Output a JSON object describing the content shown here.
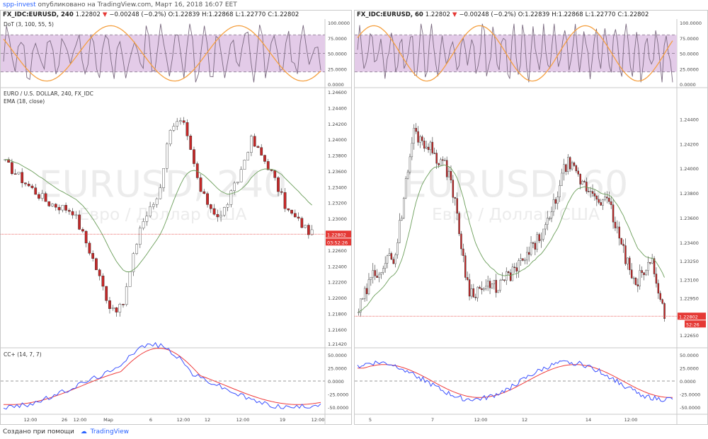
{
  "header": {
    "author": "spp-invest",
    "published_text": "опубликовано на TradingView.com, Март 16, 2018 16:07 EET"
  },
  "footer": {
    "text": "Создано при помощи",
    "brand": "TradingView"
  },
  "panels": [
    {
      "symbol": "FX_IDC:EURUSD, 240",
      "last": "1.22802",
      "change": "−0.00248 (−0.2%)",
      "o_label": "O:",
      "o": "1.22839",
      "h_label": "H:",
      "h": "1.22868",
      "l_label": "L:",
      "l": "1.22770",
      "c_label": "C:",
      "c": "1.22802",
      "dot_label": "DoT (3, 100, 55, 5)",
      "dot_axis": [
        "100.0000",
        "75.0000",
        "50.0000",
        "25.0000",
        "0.0000"
      ],
      "main_label_1": "EURO / U.S. DOLLAR, 240, FX_IDC",
      "main_label_2": "EMA (18, close)",
      "watermark_1": "EURUSD, 240",
      "watermark_2": "Евро / Доллар США",
      "price_axis": [
        "1.24600",
        "1.24400",
        "1.24200",
        "1.24000",
        "1.23800",
        "1.23600",
        "1.23400",
        "1.23200",
        "1.23000",
        "1.22800",
        "1.22600",
        "1.22400",
        "1.22200",
        "1.22000",
        "1.21800",
        "1.21600",
        "1.21420"
      ],
      "price_tag": "1.22802",
      "time_tag": "03:52:26",
      "cc_label": "CC+ (14, 7, 7)",
      "cc_axis": [
        "50.0000",
        "25.0000",
        "0.0000",
        "-25.0000",
        "-50.0000"
      ],
      "time_axis": [
        "12:00",
        "26",
        "12:00",
        "Мар",
        "6",
        "12:00",
        "12",
        "12:00",
        "19",
        "12:00"
      ]
    },
    {
      "symbol": "FX_IDC:EURUSD, 60",
      "last": "1.22802",
      "change": "−0.00248 (−0.2%)",
      "o_label": "O:",
      "o": "1.22839",
      "h_label": "H:",
      "h": "1.22868",
      "l_label": "L:",
      "l": "1.22770",
      "c_label": "C:",
      "c": "1.22802",
      "dot_axis": [
        "100.0000",
        "75.0000",
        "50.0000",
        "25.0000",
        "0.0000"
      ],
      "watermark_1": "EURUSD, 60",
      "watermark_2": "Евро / Доллар США",
      "price_axis": [
        "1.24400",
        "1.24200",
        "1.24000",
        "1.23800",
        "1.23600",
        "1.23400",
        "1.23250",
        "1.23100",
        "1.22950",
        "1.22800",
        "1.22650"
      ],
      "price_tag": "1.22802",
      "time_tag": "52:26",
      "cc_axis": [
        "50.0000",
        "25.0000",
        "0.0000",
        "-25.0000",
        "-50.0000"
      ],
      "time_axis": [
        "5",
        "7",
        "12:00",
        "12",
        "14",
        "12:00"
      ]
    }
  ],
  "colors": {
    "up": "#2e7d32",
    "down": "#c62828",
    "ema": "#6b9e5a",
    "dot_fast": "#7b6a80",
    "dot_slow": "#f5a040",
    "dot_band": "#e3cbe8",
    "cc_blue": "#3a50ff",
    "cc_red": "#ef3b3b",
    "last_price": "#e53935"
  }
}
